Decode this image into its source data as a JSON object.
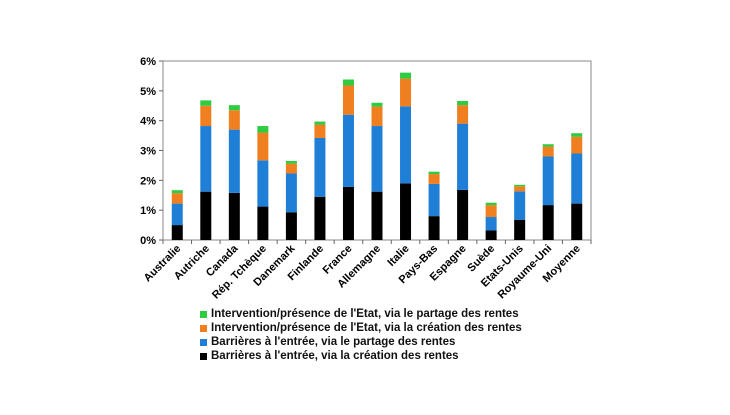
{
  "chart_data": {
    "type": "bar",
    "stacked": true,
    "categories": [
      "Australie",
      "Autriche",
      "Canada",
      "Rép. Tchèque",
      "Danemark",
      "Finlande",
      "France",
      "Allemagne",
      "Italie",
      "Pays-Bas",
      "Espagne",
      "Suède",
      "Etats-Unis",
      "Royaume-Uni",
      "Moyenne"
    ],
    "series": [
      {
        "name": "Barrières à l'entrée, via la création des rentes",
        "color": "#000000",
        "values": [
          0.5,
          1.62,
          1.58,
          1.12,
          0.93,
          1.45,
          1.78,
          1.62,
          1.9,
          0.8,
          1.68,
          0.32,
          0.68,
          1.17,
          1.22
        ]
      },
      {
        "name": "Barrières à l'entrée, via le partage des rentes",
        "color": "#1f7fd6",
        "values": [
          0.72,
          2.2,
          2.12,
          1.55,
          1.3,
          1.97,
          2.42,
          2.2,
          2.58,
          1.08,
          2.22,
          0.45,
          0.95,
          1.63,
          1.68
        ]
      },
      {
        "name": "Intervention/présence de l'Etat, via la création des rentes",
        "color": "#f07f1f",
        "values": [
          0.35,
          0.68,
          0.65,
          0.93,
          0.33,
          0.45,
          0.98,
          0.65,
          0.93,
          0.33,
          0.62,
          0.4,
          0.17,
          0.33,
          0.56
        ]
      },
      {
        "name": "Intervention/présence de l'Etat, via le partage des rentes",
        "color": "#2ecc40",
        "values": [
          0.1,
          0.18,
          0.17,
          0.22,
          0.09,
          0.1,
          0.2,
          0.13,
          0.2,
          0.08,
          0.14,
          0.08,
          0.05,
          0.08,
          0.12
        ]
      }
    ],
    "yticks": [
      "0%",
      "1%",
      "2%",
      "3%",
      "4%",
      "5%",
      "6%"
    ],
    "ylim": [
      0,
      6
    ],
    "legend_position": "bottom",
    "grid": false
  }
}
